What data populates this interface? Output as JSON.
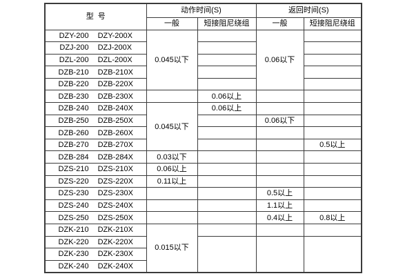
{
  "colors": {
    "background": "#ffffff",
    "border": "#3a3a3a",
    "text": "#000000"
  },
  "table": {
    "header": {
      "model": "型  号",
      "action_group": "动作时间(S)",
      "return_group": "返回时间(S)",
      "general": "一般",
      "damping": "短接阻尼绕组"
    },
    "rows": [
      {
        "model_a": "DZY-200",
        "model_b": "DZY-200X",
        "cells": [
          {
            "text": "0.045以下",
            "span": 5
          },
          {
            "text": "",
            "span": 1
          },
          {
            "text": "0.06以下",
            "span": 5
          },
          {
            "text": "",
            "span": 1
          }
        ]
      },
      {
        "model_a": "DZJ-200",
        "model_b": "DZJ-200X",
        "cells": [
          null,
          {
            "text": "",
            "span": 1
          },
          null,
          {
            "text": "",
            "span": 1
          }
        ]
      },
      {
        "model_a": "DZL-200",
        "model_b": "DZL-200X",
        "cells": [
          null,
          {
            "text": "",
            "span": 1
          },
          null,
          {
            "text": "",
            "span": 1
          }
        ]
      },
      {
        "model_a": "DZB-210",
        "model_b": "DZB-210X",
        "cells": [
          null,
          {
            "text": "",
            "span": 1
          },
          null,
          {
            "text": "",
            "span": 1
          }
        ]
      },
      {
        "model_a": "DZB-220",
        "model_b": "DZB-220X",
        "cells": [
          null,
          {
            "text": "",
            "span": 1
          },
          null,
          {
            "text": "",
            "span": 1
          }
        ]
      },
      {
        "model_a": "DZB-230",
        "model_b": "DZB-230X",
        "cells": [
          {
            "text": "",
            "span": 1
          },
          {
            "text": "0.06以上",
            "span": 1
          },
          {
            "text": "",
            "span": 1
          },
          {
            "text": "",
            "span": 1
          }
        ]
      },
      {
        "model_a": "DZB-240",
        "model_b": "DZB-240X",
        "cells": [
          {
            "text": "0.045以下",
            "span": 4
          },
          {
            "text": "0.06以上",
            "span": 1
          },
          {
            "text": "",
            "span": 1
          },
          {
            "text": "",
            "span": 1
          }
        ]
      },
      {
        "model_a": "DZB-250",
        "model_b": "DZB-250X",
        "cells": [
          null,
          {
            "text": "",
            "span": 1
          },
          {
            "text": "0.06以下",
            "span": 1
          },
          {
            "text": "",
            "span": 1
          }
        ]
      },
      {
        "model_a": "DZB-260",
        "model_b": "DZB-260X",
        "cells": [
          null,
          {
            "text": "",
            "span": 1
          },
          {
            "text": "",
            "span": 1
          },
          {
            "text": "",
            "span": 1
          }
        ]
      },
      {
        "model_a": "DZB-270",
        "model_b": "DZB-270X",
        "cells": [
          null,
          {
            "text": "",
            "span": 1
          },
          {
            "text": "",
            "span": 1
          },
          {
            "text": "0.5以上",
            "span": 1
          }
        ]
      },
      {
        "model_a": "DZB-284",
        "model_b": "DZB-284X",
        "cells": [
          {
            "text": "0.03以下",
            "span": 1
          },
          {
            "text": "",
            "span": 1
          },
          {
            "text": "",
            "span": 1
          },
          {
            "text": "",
            "span": 1
          }
        ]
      },
      {
        "model_a": "DZS-210",
        "model_b": "DZS-210X",
        "cells": [
          {
            "text": "0.06以上",
            "span": 1
          },
          {
            "text": "",
            "span": 1
          },
          {
            "text": "",
            "span": 1
          },
          {
            "text": "",
            "span": 1
          }
        ]
      },
      {
        "model_a": "DZS-220",
        "model_b": "DZS-220X",
        "cells": [
          {
            "text": "0.11以上",
            "span": 1
          },
          {
            "text": "",
            "span": 1
          },
          {
            "text": "",
            "span": 1
          },
          {
            "text": "",
            "span": 1
          }
        ]
      },
      {
        "model_a": "DZS-230",
        "model_b": "DZS-230X",
        "cells": [
          {
            "text": "",
            "span": 1
          },
          {
            "text": "",
            "span": 1
          },
          {
            "text": "0.5以上",
            "span": 1
          },
          {
            "text": "",
            "span": 1
          }
        ]
      },
      {
        "model_a": "DZS-240",
        "model_b": "DZS-240X",
        "cells": [
          {
            "text": "",
            "span": 1
          },
          {
            "text": "",
            "span": 1
          },
          {
            "text": "1.1以上",
            "span": 1
          },
          {
            "text": "",
            "span": 1
          }
        ]
      },
      {
        "model_a": "DZS-250",
        "model_b": "DZS-250X",
        "cells": [
          {
            "text": "",
            "span": 1
          },
          {
            "text": "",
            "span": 1
          },
          {
            "text": "0.4以上",
            "span": 1
          },
          {
            "text": "0.8以上",
            "span": 1
          }
        ]
      },
      {
        "model_a": "DZK-210",
        "model_b": "DZK-210X",
        "cells": [
          {
            "text": "0.015以下",
            "span": 4
          },
          {
            "text": "",
            "span": 1
          },
          {
            "text": "",
            "span": 1
          },
          {
            "text": "",
            "span": 1
          }
        ]
      },
      {
        "model_a": "DZK-220",
        "model_b": "DZK-220X",
        "cells": [
          null,
          {
            "text": "",
            "span": 3
          },
          {
            "text": "",
            "span": 3
          },
          {
            "text": "",
            "span": 3
          }
        ]
      },
      {
        "model_a": "DZK-230",
        "model_b": "DZK-230X",
        "cells": [
          null,
          null,
          null,
          null
        ]
      },
      {
        "model_a": "DZK-240",
        "model_b": "DZK-240X",
        "cells": [
          null,
          null,
          null,
          null
        ]
      }
    ]
  }
}
